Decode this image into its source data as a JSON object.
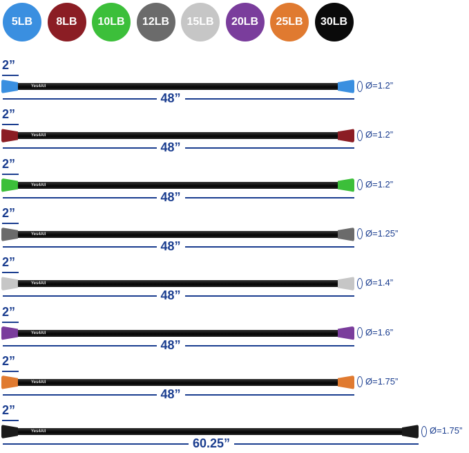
{
  "weights": [
    {
      "label": "5LB",
      "color": "#3a8fe0",
      "text": "#ffffff"
    },
    {
      "label": "8LB",
      "color": "#8b1d24",
      "text": "#ffffff"
    },
    {
      "label": "10LB",
      "color": "#3cbf3a",
      "text": "#ffffff"
    },
    {
      "label": "12LB",
      "color": "#6b6b6b",
      "text": "#ffffff"
    },
    {
      "label": "15LB",
      "color": "#c6c6c6",
      "text": "#ffffff"
    },
    {
      "label": "20LB",
      "color": "#7a3d9c",
      "text": "#ffffff"
    },
    {
      "label": "25LB",
      "color": "#e07a30",
      "text": "#ffffff"
    },
    {
      "label": "30LB",
      "color": "#0a0a0a",
      "text": "#ffffff"
    }
  ],
  "bars": [
    {
      "cap_length": "2”",
      "length": "48”",
      "diameter": "Ø=1.2”",
      "cap_color": "#3a8fe0"
    },
    {
      "cap_length": "2”",
      "length": "48”",
      "diameter": "Ø=1.2”",
      "cap_color": "#8b1d24"
    },
    {
      "cap_length": "2”",
      "length": "48”",
      "diameter": "Ø=1.2”",
      "cap_color": "#3cbf3a"
    },
    {
      "cap_length": "2”",
      "length": "48”",
      "diameter": "Ø=1.25”",
      "cap_color": "#6b6b6b"
    },
    {
      "cap_length": "2”",
      "length": "48”",
      "diameter": "Ø=1.4”",
      "cap_color": "#c6c6c6"
    },
    {
      "cap_length": "2”",
      "length": "48”",
      "diameter": "Ø=1.6”",
      "cap_color": "#7a3d9c"
    },
    {
      "cap_length": "2”",
      "length": "48”",
      "diameter": "Ø=1.75”",
      "cap_color": "#e07a30"
    },
    {
      "cap_length": "2”",
      "length": "60.25”",
      "diameter": "Ø=1.75”",
      "cap_color": "#1a1a1a"
    }
  ],
  "logo": "Yes4All"
}
